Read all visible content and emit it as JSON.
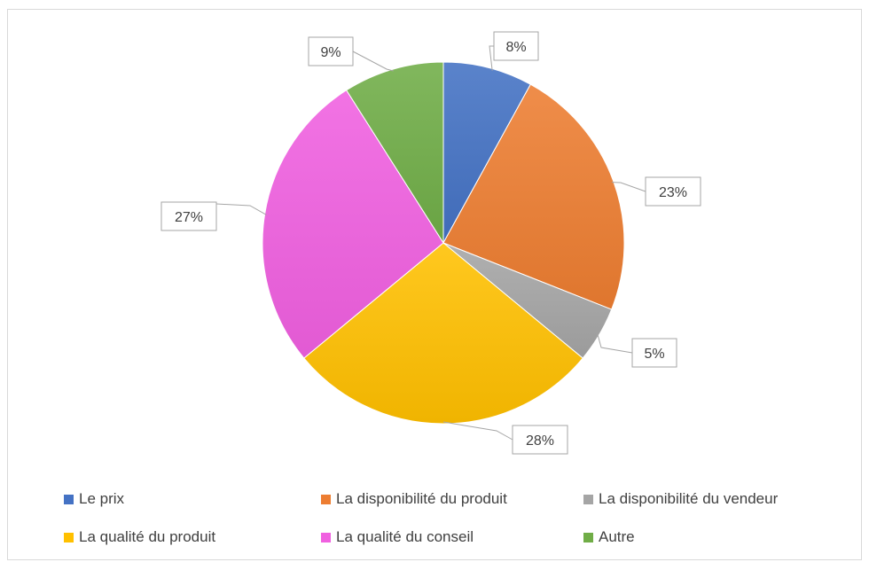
{
  "chart_data": {
    "type": "pie",
    "title": "",
    "categories": [
      "Le prix",
      "La disponibilité du produit",
      "La disponibilité du vendeur",
      "La qualité du produit",
      "La qualité du conseil",
      "Autre"
    ],
    "values": [
      8,
      23,
      5,
      28,
      27,
      9
    ],
    "data_labels": [
      "8%",
      "23%",
      "5%",
      "28%",
      "27%",
      "9%"
    ],
    "colors": [
      "#4472C4",
      "#ED7D31",
      "#A5A5A5",
      "#FFC000",
      "#F060E0",
      "#70AD47"
    ],
    "legend_position": "bottom",
    "start_angle": "12 o'clock, clockwise"
  }
}
